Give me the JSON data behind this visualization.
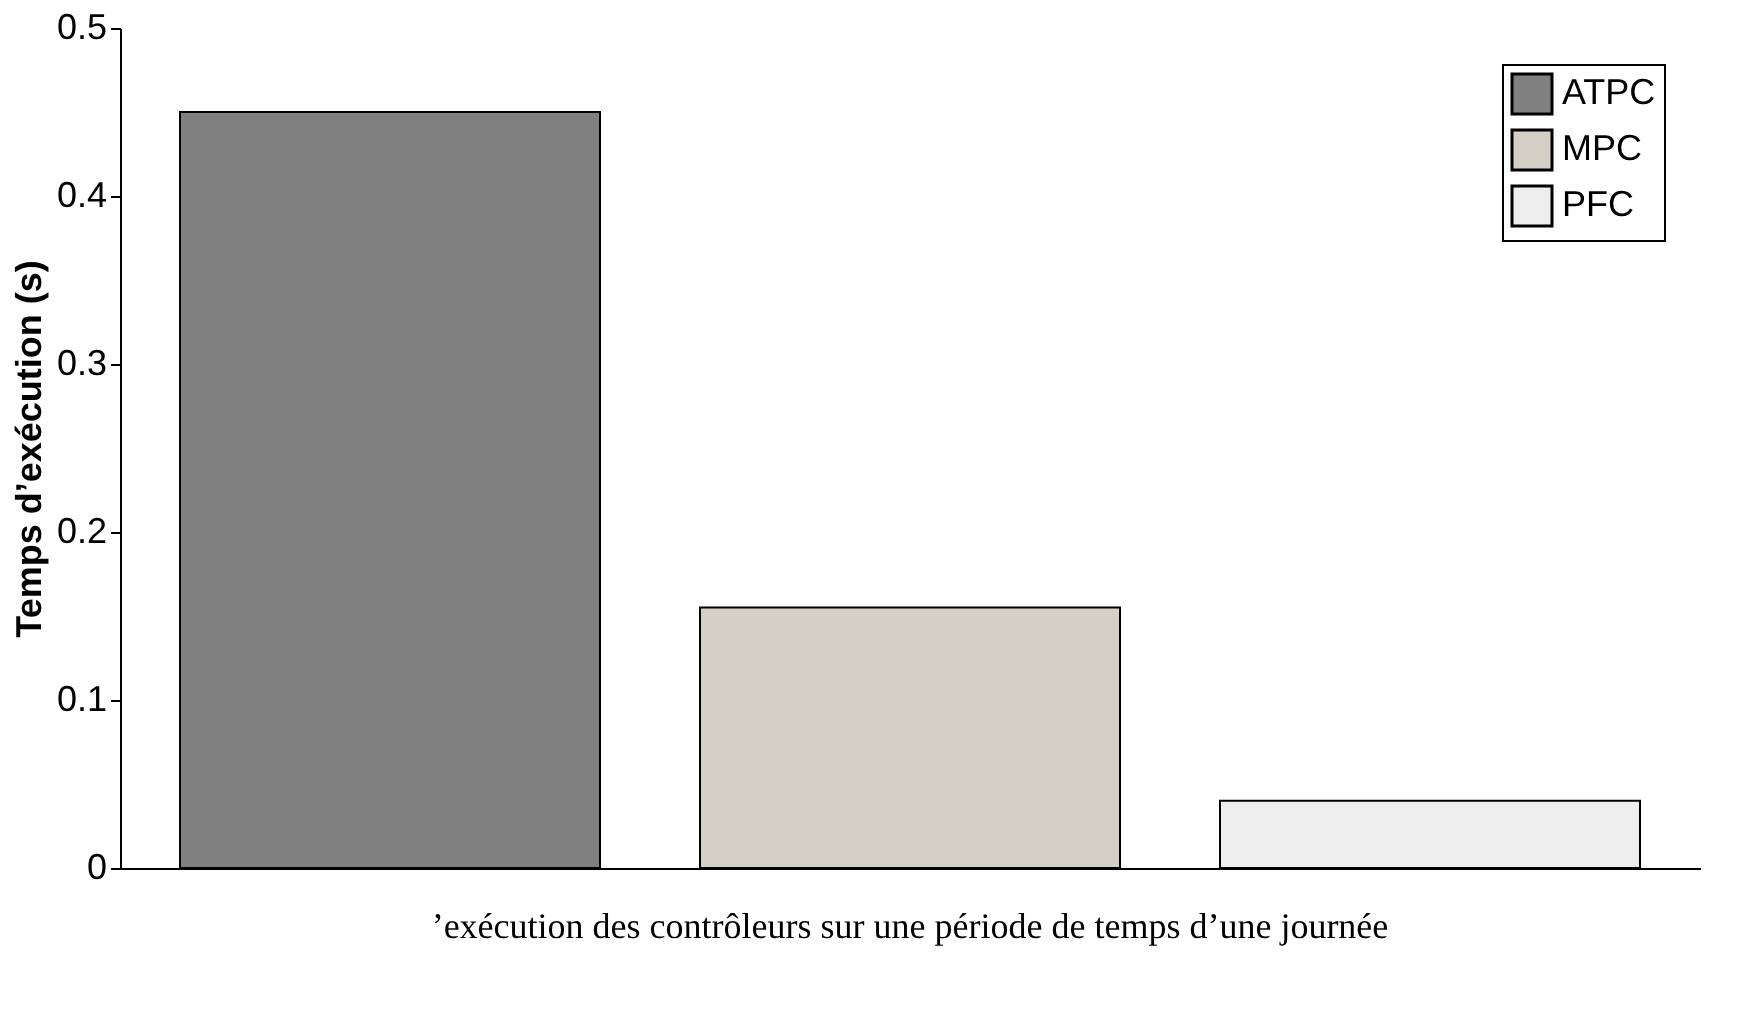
{
  "chart_data": {
    "type": "bar",
    "ylabel": "Temps d’exécution (s)",
    "categories": [
      null,
      null,
      null
    ],
    "series": [
      {
        "name": "ATPC",
        "color": "#808080",
        "values": [
          0.45,
          null,
          null
        ]
      },
      {
        "name": "MPC",
        "color": "#d4d0c8",
        "values": [
          null,
          0.155,
          null
        ]
      },
      {
        "name": "PFC",
        "color": "#eeeeee",
        "values": [
          null,
          null,
          0.04
        ]
      }
    ],
    "ylim": [
      0,
      0.5
    ],
    "yticks": [
      0,
      0.1,
      0.2,
      0.3,
      0.4,
      0.5
    ],
    "grid": false,
    "legend": "top right",
    "annotations": [
      "’exécution des contrôleurs sur une période de temps d’une journée"
    ]
  }
}
